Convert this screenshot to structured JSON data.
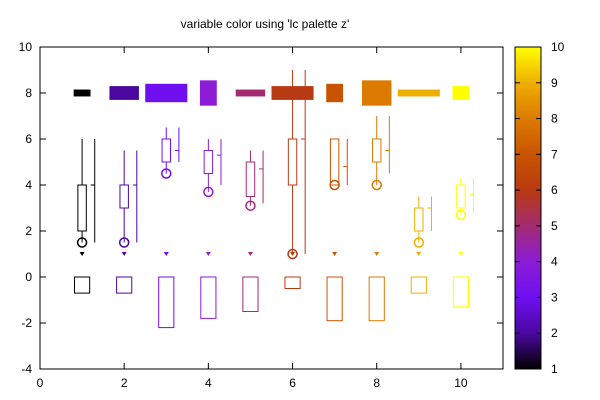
{
  "chart_data": {
    "type": "mixed",
    "title": "variable color using 'lc palette z'",
    "xlabel": "",
    "ylabel": "",
    "xlim": [
      0,
      11
    ],
    "ylim": [
      -4,
      10
    ],
    "x_ticks": [
      0,
      2,
      4,
      6,
      8,
      10
    ],
    "y_ticks": [
      -4,
      -2,
      0,
      2,
      4,
      6,
      8,
      10
    ],
    "grid": false,
    "legend": "none",
    "x": [
      1,
      2,
      3,
      4,
      5,
      6,
      7,
      8,
      9,
      10
    ],
    "z": [
      1,
      2,
      3,
      4,
      5,
      6,
      7,
      8,
      9,
      10
    ],
    "boxes_top": {
      "center": 8.0,
      "half_widths": [
        0.2,
        0.35,
        0.5,
        0.2,
        0.35,
        0.5,
        0.2,
        0.35,
        0.5,
        0.2
      ],
      "half_heights": [
        0.15,
        0.3,
        0.4,
        0.55,
        0.15,
        0.3,
        0.4,
        0.55,
        0.15,
        0.3
      ]
    },
    "candlesticks": [
      {
        "x": 1,
        "min": 1.5,
        "q1": 2,
        "q3": 4,
        "max": 6,
        "circle": 1.5
      },
      {
        "x": 2,
        "min": 1.5,
        "q1": 3,
        "q3": 4,
        "max": 5.5,
        "circle": 1.5
      },
      {
        "x": 3,
        "min": 4.5,
        "q1": 5,
        "q3": 6,
        "max": 6.5,
        "circle": 4.5
      },
      {
        "x": 4,
        "min": 3.7,
        "q1": 4.5,
        "q3": 5.5,
        "max": 6,
        "circle": 3.7
      },
      {
        "x": 5,
        "min": 3.1,
        "q1": 3.5,
        "q3": 5,
        "max": 5.5,
        "circle": 3.1
      },
      {
        "x": 6,
        "min": 1,
        "q1": 4,
        "q3": 6,
        "max": 9,
        "circle": 1
      },
      {
        "x": 7,
        "min": 4,
        "q1": 4,
        "q3": 6,
        "max": 6,
        "circle": 4
      },
      {
        "x": 8,
        "min": 4,
        "q1": 5,
        "q3": 6,
        "max": 7,
        "circle": 4
      },
      {
        "x": 9,
        "min": 1.5,
        "q1": 2,
        "q3": 3,
        "max": 3.5,
        "circle": 1.5
      },
      {
        "x": 10,
        "min": 2.7,
        "q1": 3,
        "q3": 4,
        "max": 4.3,
        "circle": 2.7
      }
    ],
    "side_bars": [
      {
        "x": 1,
        "low": 1.5,
        "high": 6,
        "mid": 4
      },
      {
        "x": 2,
        "low": 1.5,
        "high": 5.5,
        "mid": 4
      },
      {
        "x": 3,
        "low": 5,
        "high": 6.5,
        "mid": 5.5
      },
      {
        "x": 4,
        "low": 4,
        "high": 6,
        "mid": 5.3
      },
      {
        "x": 5,
        "low": 3.2,
        "high": 5.5,
        "mid": 4.7
      },
      {
        "x": 6,
        "low": 1,
        "high": 9,
        "mid": 6
      },
      {
        "x": 7,
        "low": 4,
        "high": 6,
        "mid": 4.8
      },
      {
        "x": 8,
        "low": 4.5,
        "high": 7,
        "mid": 5.5
      },
      {
        "x": 9,
        "low": 2,
        "high": 3.5,
        "mid": 3
      },
      {
        "x": 10,
        "low": 2.8,
        "high": 4.3,
        "mid": 3.6
      }
    ],
    "markers_y": 1,
    "boxes_bottom": {
      "top": 0,
      "bottoms": [
        -0.7,
        -0.7,
        -2.2,
        -1.8,
        -1.5,
        -0.5,
        -1.9,
        -1.9,
        -0.7,
        -1.3
      ],
      "half_width": 0.18
    },
    "colorbar": {
      "palette": "gnuplot default (black-blue-purple-red-orange-yellow)",
      "range": [
        1,
        10
      ],
      "ticks": [
        1,
        2,
        3,
        4,
        5,
        6,
        7,
        8,
        9,
        10
      ]
    }
  }
}
